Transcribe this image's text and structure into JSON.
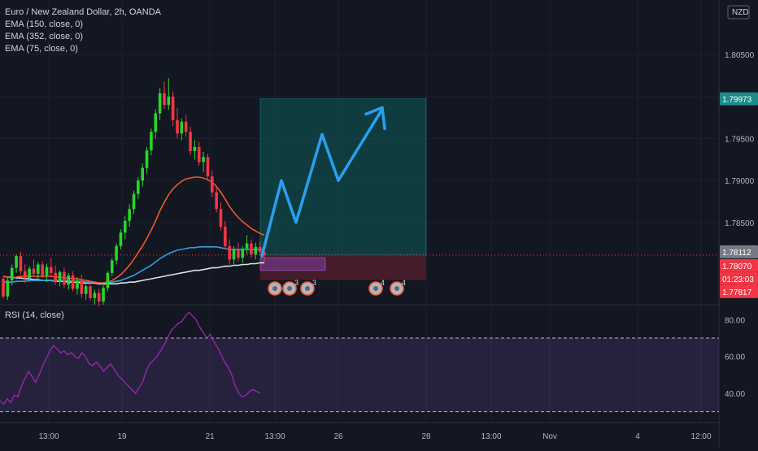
{
  "header": {
    "symbol_line": "Euro / New Zealand Dollar, 2h, OANDA",
    "indicators": [
      "EMA (150, close, 0)",
      "EMA (352, close, 0)",
      "EMA (75, close, 0)"
    ]
  },
  "axis": {
    "currency": "NZD",
    "price_ticks": [
      "1.80500",
      "1.80000",
      "1.79500",
      "1.79000",
      "1.78500"
    ],
    "price_tick_values": [
      1.805,
      1.8,
      1.795,
      1.79,
      1.785
    ],
    "time_ticks": [
      "13:00",
      "19",
      "21",
      "13:00",
      "26",
      "28",
      "13:00",
      "Nov",
      "4",
      "12:00"
    ]
  },
  "badges": {
    "target": {
      "text": "1.79973",
      "color": "#1e8a8a"
    },
    "last": {
      "text": "1.78112",
      "color": "#787b86"
    },
    "current": {
      "text": "1.78070",
      "color": "#f23645"
    },
    "countdown": {
      "text": "01:23:03",
      "color": "#f23645"
    },
    "stop": {
      "text": "1.77817",
      "color": "#f23645"
    }
  },
  "events": [
    {
      "icon": "news-icon",
      "count": ""
    },
    {
      "icon": "news-icon",
      "count": "3"
    },
    {
      "icon": "news-icon",
      "count": "3"
    },
    {
      "icon": "news-icon",
      "count": "4"
    },
    {
      "icon": "news-icon",
      "count": "4"
    }
  ],
  "rsi": {
    "title": "RSI (14, close)",
    "ticks": [
      "80.00",
      "60.00",
      "40.00"
    ],
    "tick_values": [
      80,
      60,
      40
    ],
    "upper": 70,
    "lower": 30,
    "values": [
      36,
      34,
      37,
      35,
      39,
      38,
      44,
      48,
      52,
      49,
      46,
      50,
      55,
      59,
      63,
      66,
      64,
      62,
      63,
      61,
      62,
      60,
      59,
      62,
      60,
      56,
      55,
      57,
      55,
      52,
      54,
      56,
      53,
      50,
      48,
      46,
      44,
      42,
      40,
      43,
      46,
      52,
      56,
      58,
      60,
      63,
      66,
      70,
      74,
      76,
      78,
      79,
      82,
      84,
      82,
      80,
      76,
      73,
      70,
      72,
      68,
      65,
      61,
      57,
      54,
      50,
      44,
      40,
      38,
      39,
      41,
      42,
      41,
      40
    ],
    "line_color": "#9c27b0",
    "band_color": "#7e57c2"
  },
  "chart_data": {
    "type": "candlestick",
    "title": "Euro / New Zealand Dollar, 2h, OANDA",
    "ylim": [
      1.7755,
      1.8115
    ],
    "y_ticks": [
      1.805,
      1.8,
      1.795,
      1.79,
      1.785
    ],
    "candles": [
      [
        1.7783,
        1.7786,
        1.776,
        1.7762
      ],
      [
        1.7762,
        1.7785,
        1.7758,
        1.7781
      ],
      [
        1.7781,
        1.78,
        1.7775,
        1.7796
      ],
      [
        1.7796,
        1.7812,
        1.779,
        1.781
      ],
      [
        1.781,
        1.7815,
        1.7788,
        1.7792
      ],
      [
        1.7792,
        1.78,
        1.7778,
        1.7784
      ],
      [
        1.7784,
        1.7798,
        1.7779,
        1.7795
      ],
      [
        1.7795,
        1.7806,
        1.7786,
        1.7789
      ],
      [
        1.7789,
        1.7803,
        1.7781,
        1.78
      ],
      [
        1.78,
        1.7804,
        1.7784,
        1.7787
      ],
      [
        1.7787,
        1.7801,
        1.7779,
        1.7797
      ],
      [
        1.7797,
        1.7808,
        1.7786,
        1.779
      ],
      [
        1.779,
        1.7799,
        1.7776,
        1.7779
      ],
      [
        1.7779,
        1.7793,
        1.7774,
        1.7791
      ],
      [
        1.7791,
        1.7796,
        1.7772,
        1.7776
      ],
      [
        1.7776,
        1.779,
        1.777,
        1.7787
      ],
      [
        1.7787,
        1.7792,
        1.7768,
        1.7771
      ],
      [
        1.7771,
        1.7785,
        1.7764,
        1.7781
      ],
      [
        1.7781,
        1.7788,
        1.776,
        1.7765
      ],
      [
        1.7765,
        1.7778,
        1.7758,
        1.7774
      ],
      [
        1.7774,
        1.778,
        1.7757,
        1.776
      ],
      [
        1.776,
        1.777,
        1.7752,
        1.7766
      ],
      [
        1.7766,
        1.7771,
        1.775,
        1.7756
      ],
      [
        1.7756,
        1.7775,
        1.7752,
        1.7772
      ],
      [
        1.7772,
        1.7792,
        1.7768,
        1.779
      ],
      [
        1.779,
        1.7808,
        1.7786,
        1.7805
      ],
      [
        1.7805,
        1.7825,
        1.78,
        1.7822
      ],
      [
        1.7822,
        1.7842,
        1.7818,
        1.7838
      ],
      [
        1.7838,
        1.7858,
        1.783,
        1.7852
      ],
      [
        1.7852,
        1.7872,
        1.7845,
        1.7866
      ],
      [
        1.7866,
        1.7888,
        1.786,
        1.7884
      ],
      [
        1.7884,
        1.7904,
        1.7878,
        1.79
      ],
      [
        1.79,
        1.792,
        1.7893,
        1.7915
      ],
      [
        1.7915,
        1.794,
        1.7908,
        1.7936
      ],
      [
        1.7936,
        1.7962,
        1.793,
        1.7958
      ],
      [
        1.7958,
        1.7985,
        1.795,
        1.798
      ],
      [
        1.798,
        1.801,
        1.7972,
        1.8004
      ],
      [
        1.8004,
        1.8018,
        1.7985,
        1.799
      ],
      [
        1.799,
        1.8022,
        1.7984,
        1.8
      ],
      [
        1.8,
        1.8006,
        1.7965,
        1.7972
      ],
      [
        1.7972,
        1.7986,
        1.795,
        1.7956
      ],
      [
        1.7956,
        1.7974,
        1.7948,
        1.797
      ],
      [
        1.797,
        1.7978,
        1.7952,
        1.7958
      ],
      [
        1.7958,
        1.7964,
        1.793,
        1.7935
      ],
      [
        1.7935,
        1.7948,
        1.7925,
        1.794
      ],
      [
        1.794,
        1.7946,
        1.7918,
        1.7922
      ],
      [
        1.7922,
        1.7934,
        1.791,
        1.7928
      ],
      [
        1.7928,
        1.7932,
        1.79,
        1.7905
      ],
      [
        1.7905,
        1.7912,
        1.788,
        1.7886
      ],
      [
        1.7886,
        1.7894,
        1.7862,
        1.7866
      ],
      [
        1.7866,
        1.7874,
        1.784,
        1.7845
      ],
      [
        1.7845,
        1.7852,
        1.7818,
        1.7822
      ],
      [
        1.7822,
        1.783,
        1.78,
        1.7806
      ],
      [
        1.7806,
        1.7822,
        1.7798,
        1.7818
      ],
      [
        1.7818,
        1.7826,
        1.7804,
        1.7808
      ],
      [
        1.7808,
        1.7822,
        1.7802,
        1.7819
      ],
      [
        1.7819,
        1.7835,
        1.7812,
        1.7825
      ],
      [
        1.7825,
        1.783,
        1.7808,
        1.7812
      ],
      [
        1.7812,
        1.7826,
        1.7806,
        1.7821
      ],
      [
        1.7821,
        1.7828,
        1.781,
        1.7815
      ],
      [
        1.7815,
        1.782,
        1.7804,
        1.7811
      ]
    ],
    "ema_75": [
      1.7786,
      1.7785,
      1.7784,
      1.7785,
      1.7786,
      1.7786,
      1.7786,
      1.7786,
      1.7786,
      1.7786,
      1.7786,
      1.7786,
      1.7785,
      1.7785,
      1.7784,
      1.7784,
      1.7783,
      1.7783,
      1.7782,
      1.7781,
      1.778,
      1.7779,
      1.7778,
      1.7778,
      1.7779,
      1.7781,
      1.7784,
      1.7788,
      1.7793,
      1.7799,
      1.7806,
      1.7814,
      1.7822,
      1.7831,
      1.7841,
      1.7852,
      1.7864,
      1.7874,
      1.7883,
      1.789,
      1.7895,
      1.7899,
      1.7902,
      1.7903,
      1.7904,
      1.7904,
      1.7903,
      1.7901,
      1.7898,
      1.7893,
      1.7886,
      1.7878,
      1.7869,
      1.7862,
      1.7856,
      1.7851,
      1.7847,
      1.7843,
      1.784,
      1.7837,
      1.7835
    ],
    "ema_150": [
      1.7779,
      1.7779,
      1.7779,
      1.778,
      1.778,
      1.778,
      1.7781,
      1.7781,
      1.7781,
      1.7781,
      1.7781,
      1.7781,
      1.7781,
      1.7781,
      1.7781,
      1.7781,
      1.778,
      1.778,
      1.778,
      1.7779,
      1.7779,
      1.7779,
      1.7778,
      1.7778,
      1.7778,
      1.7779,
      1.778,
      1.7781,
      1.7783,
      1.7785,
      1.7787,
      1.779,
      1.7793,
      1.7796,
      1.7799,
      1.7803,
      1.7807,
      1.781,
      1.7813,
      1.7815,
      1.7817,
      1.7818,
      1.7819,
      1.782,
      1.782,
      1.7821,
      1.7821,
      1.7821,
      1.7821,
      1.7821,
      1.782,
      1.7819,
      1.7818,
      1.7818,
      1.7818,
      1.7818,
      1.7818,
      1.7818,
      1.7818,
      1.7818,
      1.7818
    ],
    "ema_352": [
      1.7786,
      1.7785,
      1.7785,
      1.7784,
      1.7784,
      1.7783,
      1.7783,
      1.7782,
      1.7782,
      1.7781,
      1.7781,
      1.7781,
      1.778,
      1.778,
      1.778,
      1.7779,
      1.7779,
      1.7779,
      1.7778,
      1.7778,
      1.7778,
      1.7778,
      1.7777,
      1.7777,
      1.7777,
      1.7777,
      1.7777,
      1.7778,
      1.7778,
      1.7779,
      1.7779,
      1.778,
      1.7781,
      1.7782,
      1.7783,
      1.7784,
      1.7785,
      1.7786,
      1.7787,
      1.7788,
      1.7789,
      1.779,
      1.7791,
      1.7792,
      1.7793,
      1.7793,
      1.7794,
      1.7795,
      1.7796,
      1.7796,
      1.7797,
      1.7798,
      1.7798,
      1.7799,
      1.7799,
      1.78,
      1.78,
      1.7801,
      1.7801,
      1.7802,
      1.7802
    ],
    "position": {
      "entry": 1.78112,
      "target": 1.79973,
      "stop": 1.77817
    },
    "forecast_path": [
      1.781,
      1.79,
      1.785,
      1.7955,
      1.79,
      1.7985
    ],
    "last_price": 1.78112,
    "colors": {
      "up": "#26d62a",
      "down": "#f23645",
      "ema_75": "#f0582b",
      "ema_150": "#29a3e6",
      "ema_352": "#e0e0e0",
      "arrow": "#2a9ff0",
      "target_zone": "#0c5c57",
      "stop_zone": "#5a1f2d"
    }
  }
}
